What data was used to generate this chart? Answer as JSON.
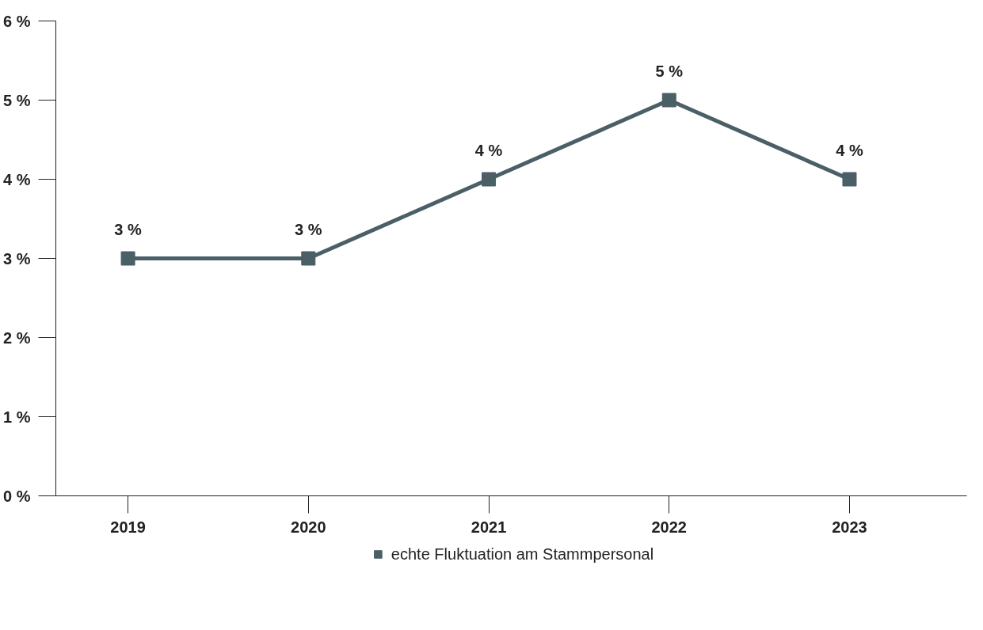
{
  "chart_data": {
    "type": "line",
    "categories": [
      "2019",
      "2020",
      "2021",
      "2022",
      "2023"
    ],
    "series": [
      {
        "name": "echte Fluktuation am Stammpersonal",
        "color": "#4a5f66",
        "values": [
          3,
          3,
          4,
          5,
          4
        ],
        "value_labels": [
          "3 %",
          "3 %",
          "4 %",
          "5 %",
          "4 %"
        ]
      }
    ],
    "ylim": [
      0,
      6
    ],
    "yticks": [
      {
        "value": 0,
        "label": "0 %"
      },
      {
        "value": 1,
        "label": "1 %"
      },
      {
        "value": 2,
        "label": "2 %"
      },
      {
        "value": 3,
        "label": "3 %"
      },
      {
        "value": 4,
        "label": "4 %"
      },
      {
        "value": 5,
        "label": "5 %"
      },
      {
        "value": 6,
        "label": "6 %"
      }
    ],
    "marker": "square",
    "line_style": "solid",
    "grid": false,
    "legend": "bottom"
  }
}
